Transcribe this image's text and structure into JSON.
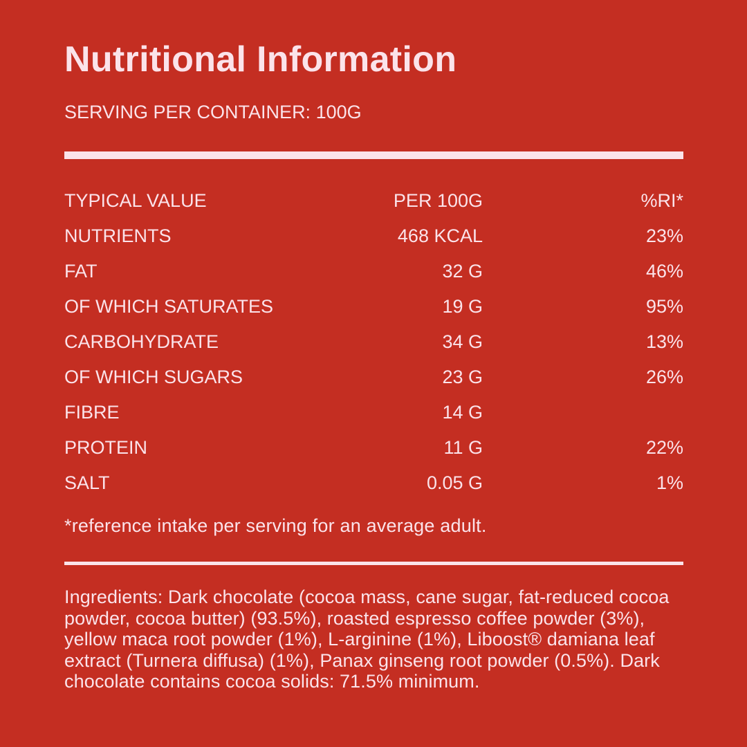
{
  "title": "Nutritional Information",
  "serving": "SERVING PER CONTAINER: 100G",
  "colors": {
    "background": "#c42e22",
    "text": "#fbe3ea"
  },
  "table": {
    "header": {
      "label": "TYPICAL VALUE",
      "amount": "PER 100G",
      "ri": "%RI*"
    },
    "rows": [
      {
        "label": "NUTRIENTS",
        "amount": "468 KCAL",
        "ri": "23%"
      },
      {
        "label": "FAT",
        "amount": "32 G",
        "ri": "46%"
      },
      {
        "label": "OF WHICH SATURATES",
        "amount": "19 G",
        "ri": "95%"
      },
      {
        "label": "CARBOHYDRATE",
        "amount": "34 G",
        "ri": "13%"
      },
      {
        "label": "OF WHICH SUGARS",
        "amount": "23 G",
        "ri": "26%"
      },
      {
        "label": "FIBRE",
        "amount": "14 G",
        "ri": ""
      },
      {
        "label": "PROTEIN",
        "amount": "11 G",
        "ri": "22%"
      },
      {
        "label": "SALT",
        "amount": "0.05 G",
        "ri": "1%"
      }
    ]
  },
  "footnote": "*reference intake per serving for an average adult.",
  "ingredients": "Ingredients: Dark chocolate (cocoa mass, cane sugar, fat-reduced cocoa powder, cocoa butter) (93.5%), roasted espresso coffee powder (3%), yellow maca root powder (1%), L-arginine (1%), Liboost® damiana leaf extract (Turnera diffusa) (1%), Panax ginseng root powder (0.5%). Dark chocolate contains cocoa solids: 71.5% minimum."
}
